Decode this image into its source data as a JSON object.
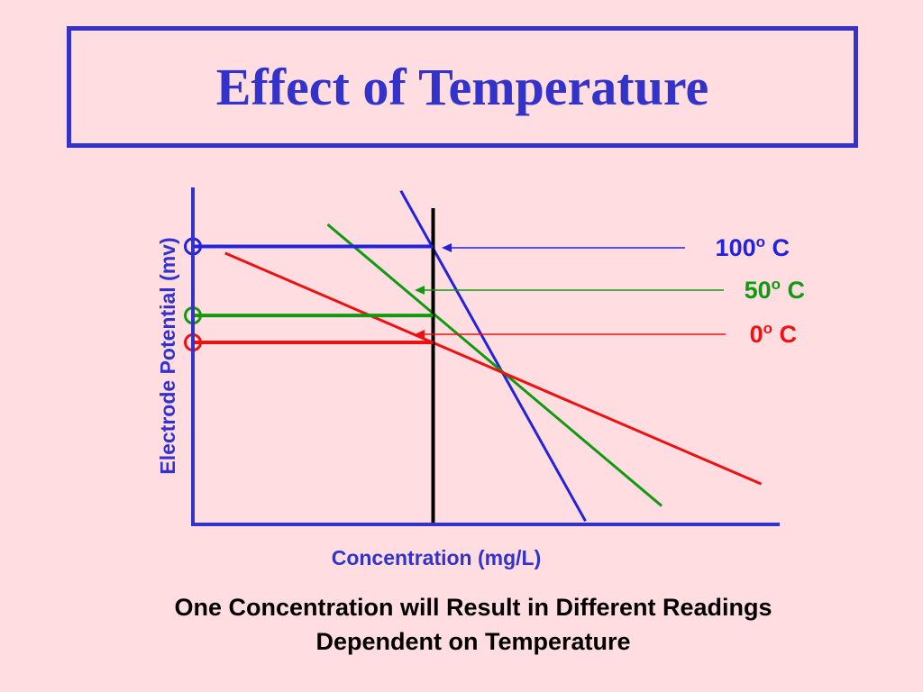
{
  "slide": {
    "title": "Effect of Temperature",
    "caption_line1": "One Concentration will Result in Different Readings",
    "caption_line2": "Dependent on Temperature"
  },
  "colors": {
    "background": "#ffdde1",
    "axis": "#3333cc",
    "marker": "#000000",
    "t100": "#2222dd",
    "t50": "#119911",
    "t0": "#ee1111"
  },
  "chart_data": {
    "type": "line",
    "title": "",
    "xlabel": "Concentration (mg/L)",
    "ylabel": "Electrode Potential (mv)",
    "xlim": [
      0,
      10
    ],
    "ylim": [
      0,
      10
    ],
    "grid": false,
    "marker_x": 4.1,
    "series": [
      {
        "name": "100",
        "unit": "o",
        "unit_suffix": " C",
        "color": "#2222dd",
        "x": [
          3.55,
          6.7
        ],
        "y": [
          9.9,
          0.1
        ],
        "reading": 8.25
      },
      {
        "name": "50",
        "unit": "o",
        "unit_suffix": " C",
        "color": "#119911",
        "x": [
          2.3,
          8.0
        ],
        "y": [
          8.9,
          0.55
        ],
        "reading": 6.2
      },
      {
        "name": "0",
        "unit": "o",
        "unit_suffix": " C",
        "color": "#ee1111",
        "x": [
          0.55,
          9.7
        ],
        "y": [
          8.05,
          1.2
        ],
        "reading": 5.4
      }
    ]
  }
}
